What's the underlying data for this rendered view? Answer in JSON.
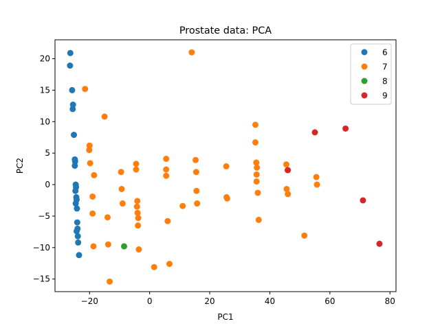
{
  "chart_data": {
    "type": "scatter",
    "title": "Prostate data: PCA",
    "xlabel": "PC1",
    "ylabel": "PC2",
    "xlim": [
      -31.5,
      82
    ],
    "ylim": [
      -17,
      23
    ],
    "xticks": [
      -20,
      0,
      20,
      40,
      60,
      80
    ],
    "yticks": [
      -15,
      -10,
      -5,
      0,
      5,
      10,
      15,
      20
    ],
    "xtick_labels": [
      "−20",
      "0",
      "20",
      "40",
      "60",
      "80"
    ],
    "ytick_labels": [
      "−15",
      "−10",
      "−5",
      "0",
      "5",
      "10",
      "15",
      "20"
    ],
    "grid": false,
    "legend_position": "top-right",
    "series": [
      {
        "name": "6",
        "color": "#1f77b4",
        "points": [
          [
            -26.4,
            20.9
          ],
          [
            -26.5,
            18.9
          ],
          [
            -25.8,
            15.0
          ],
          [
            -25.5,
            12.7
          ],
          [
            -25.6,
            12.0
          ],
          [
            -25.2,
            7.9
          ],
          [
            -24.9,
            4.0
          ],
          [
            -24.8,
            3.7
          ],
          [
            -24.9,
            3.0
          ],
          [
            -24.6,
            0.0
          ],
          [
            -24.5,
            -0.4
          ],
          [
            -24.7,
            -1.0
          ],
          [
            -24.4,
            -2.0
          ],
          [
            -24.3,
            -2.4
          ],
          [
            -24.6,
            -3.0
          ],
          [
            -24.2,
            -3.8
          ],
          [
            -24.1,
            -6.0
          ],
          [
            -24.0,
            -7.0
          ],
          [
            -24.3,
            -7.4
          ],
          [
            -23.9,
            -8.2
          ],
          [
            -23.8,
            -9.2
          ],
          [
            -23.5,
            -11.2
          ]
        ]
      },
      {
        "name": "7",
        "color": "#ff7f0e",
        "points": [
          [
            14.0,
            21.0
          ],
          [
            -21.5,
            15.2
          ],
          [
            -15.0,
            10.8
          ],
          [
            -20.0,
            6.2
          ],
          [
            -20.1,
            5.5
          ],
          [
            -19.8,
            3.4
          ],
          [
            -18.5,
            1.5
          ],
          [
            -9.5,
            2.0
          ],
          [
            -4.5,
            3.3
          ],
          [
            -4.5,
            2.4
          ],
          [
            5.5,
            4.1
          ],
          [
            5.5,
            2.4
          ],
          [
            5.5,
            1.4
          ],
          [
            15.3,
            3.9
          ],
          [
            15.5,
            2.0
          ],
          [
            25.5,
            2.9
          ],
          [
            35.2,
            9.5
          ],
          [
            35.2,
            6.7
          ],
          [
            35.5,
            3.5
          ],
          [
            35.7,
            2.7
          ],
          [
            35.6,
            1.6
          ],
          [
            35.6,
            0.5
          ],
          [
            45.5,
            3.2
          ],
          [
            45.9,
            2.3
          ],
          [
            55.5,
            1.2
          ],
          [
            55.7,
            0.0
          ],
          [
            -9.3,
            -0.7
          ],
          [
            -19.0,
            -1.9
          ],
          [
            -9.0,
            -3.0
          ],
          [
            -4.1,
            -2.6
          ],
          [
            -4.2,
            -3.5
          ],
          [
            -4.0,
            -4.5
          ],
          [
            -3.8,
            -5.3
          ],
          [
            -3.9,
            -6.5
          ],
          [
            15.6,
            -1.0
          ],
          [
            15.8,
            -3.0
          ],
          [
            11.0,
            -3.4
          ],
          [
            6.0,
            -5.8
          ],
          [
            25.6,
            -2.0
          ],
          [
            25.8,
            -2.2
          ],
          [
            36.0,
            -1.3
          ],
          [
            36.3,
            -5.6
          ],
          [
            45.6,
            -0.7
          ],
          [
            46.0,
            -1.5
          ],
          [
            -19.0,
            -4.6
          ],
          [
            -14.0,
            -5.2
          ],
          [
            -13.8,
            -9.5
          ],
          [
            -18.7,
            -9.8
          ],
          [
            -3.6,
            -10.3
          ],
          [
            1.5,
            -13.1
          ],
          [
            6.6,
            -12.6
          ],
          [
            -13.3,
            -15.4
          ],
          [
            51.5,
            -8.1
          ]
        ]
      },
      {
        "name": "8",
        "color": "#2ca02c",
        "points": [
          [
            -8.5,
            -9.8
          ]
        ]
      },
      {
        "name": "9",
        "color": "#d62728",
        "points": [
          [
            46.0,
            2.3
          ],
          [
            55.0,
            8.3
          ],
          [
            65.2,
            8.9
          ],
          [
            71.0,
            -2.5
          ],
          [
            76.5,
            -9.4
          ]
        ]
      }
    ]
  }
}
